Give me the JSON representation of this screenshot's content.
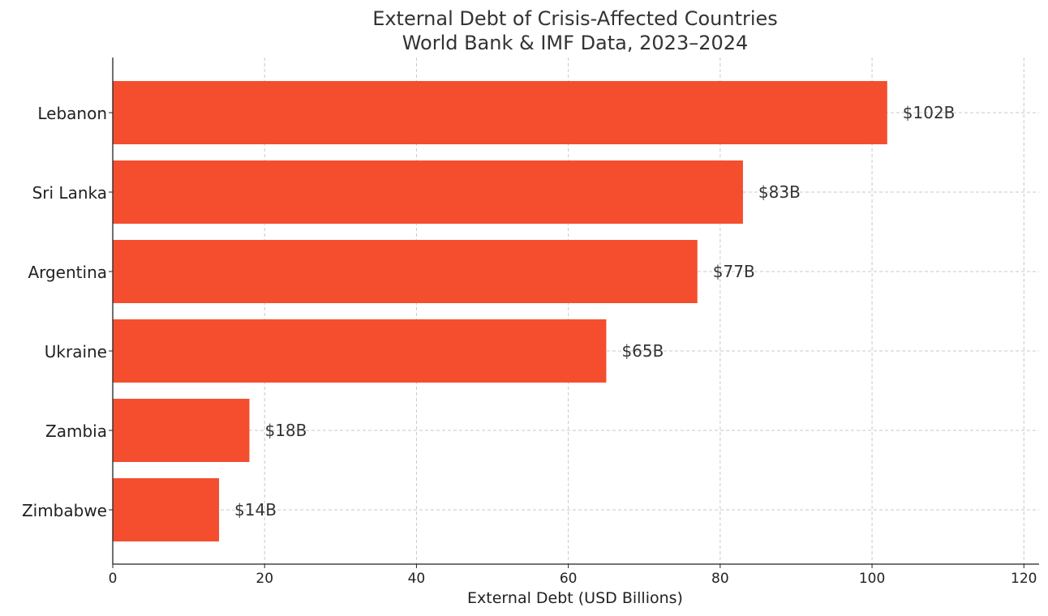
{
  "chart_data": {
    "type": "bar",
    "orientation": "horizontal",
    "title_line1": "External Debt of Crisis-Affected Countries",
    "title_line2": "World Bank & IMF Data, 2023–2024",
    "xlabel": "External Debt (USD Billions)",
    "ylabel": "",
    "categories": [
      "Lebanon",
      "Sri Lanka",
      "Argentina",
      "Ukraine",
      "Zambia",
      "Zimbabwe"
    ],
    "values": [
      102,
      83,
      77,
      65,
      18,
      14
    ],
    "value_labels": [
      "$102B",
      "$83B",
      "$77B",
      "$65B",
      "$18B",
      "$14B"
    ],
    "xlim": [
      0,
      122
    ],
    "xticks": [
      0,
      20,
      40,
      60,
      80,
      100,
      120
    ],
    "grid": true,
    "bar_color": "#f44e2f",
    "grid_color": "#c8c8c8",
    "axis_color": "#222222"
  }
}
